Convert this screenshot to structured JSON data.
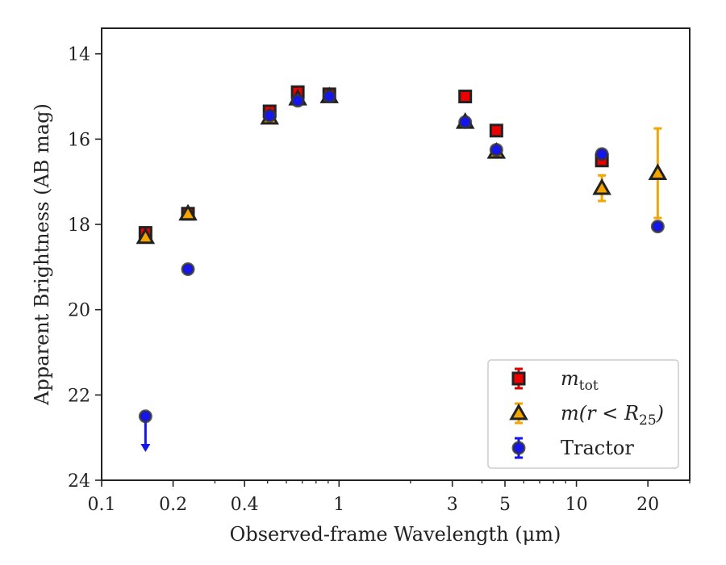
{
  "chart_data": {
    "type": "scatter",
    "xlabel": "Observed-frame Wavelength (μm)",
    "ylabel": "Apparent Brightness (AB mag)",
    "xscale": "log",
    "xlim": [
      0.1,
      30
    ],
    "ylim": [
      24,
      13.4
    ],
    "y_inverted": true,
    "xticks": [
      {
        "value": 0.1,
        "label": "0.1"
      },
      {
        "value": 0.2,
        "label": "0.2"
      },
      {
        "value": 0.4,
        "label": "0.4"
      },
      {
        "value": 1,
        "label": "1"
      },
      {
        "value": 3,
        "label": "3"
      },
      {
        "value": 5,
        "label": "5"
      },
      {
        "value": 10,
        "label": "10"
      },
      {
        "value": 20,
        "label": "20"
      }
    ],
    "yticks": [
      {
        "value": 14,
        "label": "14"
      },
      {
        "value": 16,
        "label": "16"
      },
      {
        "value": 18,
        "label": "18"
      },
      {
        "value": 20,
        "label": "20"
      },
      {
        "value": 22,
        "label": "22"
      },
      {
        "value": 24,
        "label": "24"
      }
    ],
    "legend_position": "lower-right",
    "grid": false,
    "series": [
      {
        "name": "m_tot",
        "legend_base": "m",
        "legend_sub": "tot",
        "marker": "square",
        "color": "#ee0000",
        "edge_color": "#222222",
        "errorbar_color": "#dd0000",
        "points": [
          {
            "x": 0.153,
            "y": 18.2,
            "err": 0.12
          },
          {
            "x": 0.231,
            "y": 17.75,
            "err": 0.12
          },
          {
            "x": 0.51,
            "y": 15.35,
            "err": 0.05
          },
          {
            "x": 0.67,
            "y": 14.9,
            "err": 0.05
          },
          {
            "x": 0.91,
            "y": 14.95,
            "err": 0.05
          },
          {
            "x": 3.4,
            "y": 15.0,
            "err": 0.05
          },
          {
            "x": 4.6,
            "y": 15.8,
            "err": 0.05
          },
          {
            "x": 12.8,
            "y": 16.5,
            "err": 0.1
          }
        ]
      },
      {
        "name": "m(r < R_25)",
        "legend_base": "m(r < R",
        "legend_sub": "25",
        "legend_suffix": ")",
        "marker": "triangle",
        "color": "#f5a500",
        "edge_color": "#222222",
        "errorbar_color": "#f5a500",
        "points": [
          {
            "x": 0.153,
            "y": 18.3,
            "err": 0.1
          },
          {
            "x": 0.231,
            "y": 17.75,
            "err": 0.1
          },
          {
            "x": 0.51,
            "y": 15.5,
            "err": 0.05
          },
          {
            "x": 0.67,
            "y": 15.05,
            "err": 0.05
          },
          {
            "x": 0.91,
            "y": 15.0,
            "err": 0.05
          },
          {
            "x": 3.4,
            "y": 15.6,
            "err": 0.05
          },
          {
            "x": 4.6,
            "y": 16.3,
            "err": 0.05
          },
          {
            "x": 12.8,
            "y": 17.15,
            "err": 0.3
          },
          {
            "x": 22.0,
            "y": 16.8,
            "err": 1.05
          }
        ]
      },
      {
        "name": "Tractor",
        "legend_base": "Tractor",
        "marker": "circle",
        "color": "#1515ee",
        "edge_color": "#333333",
        "errorbar_color": "#1515ee",
        "points": [
          {
            "x": 0.153,
            "y": 22.5,
            "err": 0.05,
            "upper_limit": true
          },
          {
            "x": 0.231,
            "y": 19.05,
            "err": 0.05
          },
          {
            "x": 0.51,
            "y": 15.45,
            "err": 0.05
          },
          {
            "x": 0.67,
            "y": 15.1,
            "err": 0.05
          },
          {
            "x": 0.91,
            "y": 15.0,
            "err": 0.05
          },
          {
            "x": 3.4,
            "y": 15.6,
            "err": 0.05
          },
          {
            "x": 4.6,
            "y": 16.25,
            "err": 0.05
          },
          {
            "x": 12.8,
            "y": 16.35,
            "err": 0.05
          },
          {
            "x": 22.0,
            "y": 18.05,
            "err": 0.05
          }
        ]
      }
    ]
  }
}
